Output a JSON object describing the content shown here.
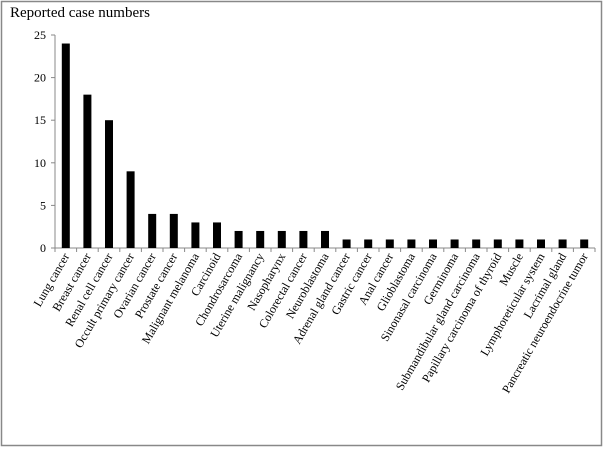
{
  "chart_data": {
    "type": "bar",
    "title": "Reported case numbers",
    "categories": [
      "Lung cancer",
      "Breast cancer",
      "Renal cell cancer",
      "Occult primary cancer",
      "Ovarian cancer",
      "Prostate cancer",
      "Malignant melanoma",
      "Carcinoid",
      "Chondrosarcoma",
      "Uterine malignancy",
      "Nasopharynx",
      "Colorectal cancer",
      "Neuroblastoma",
      "Adrenal gland cancer",
      "Gastric cancer",
      "Anal cancer",
      "Glioblastoma",
      "Sinonasal carcinoma",
      "Germinoma",
      "Submandibular gland carcinoma",
      "Papillary carcinoma of thyroid",
      "Muscle",
      "Lymphoreticular system",
      "Lacrimal gland",
      "Pancreatic neuroendocrine tumor"
    ],
    "values": [
      24,
      18,
      15,
      9,
      4,
      4,
      3,
      3,
      2,
      2,
      2,
      2,
      2,
      1,
      1,
      1,
      1,
      1,
      1,
      1,
      1,
      1,
      1,
      1,
      1
    ],
    "color": "#000000",
    "ylim": [
      0,
      25
    ],
    "yticks": [
      0,
      5,
      10,
      15,
      20,
      25
    ],
    "grid": false
  }
}
